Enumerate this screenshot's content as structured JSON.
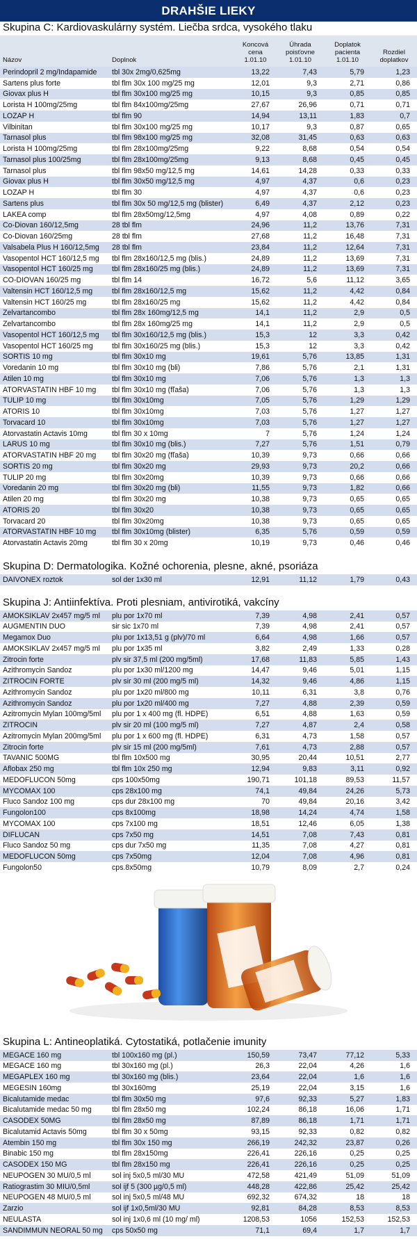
{
  "header": {
    "title": "DRAHŠIE LIEKY"
  },
  "columns": [
    [
      "Názov"
    ],
    [
      "Doplnok"
    ],
    [
      "Koncová",
      "cena",
      "1.01.10"
    ],
    [
      "Úhrada",
      "poisťovne",
      "1.01.10"
    ],
    [
      "Doplatok",
      "pacienta",
      "1.01.10"
    ],
    [
      "Rozdiel",
      "doplatkov"
    ]
  ],
  "sections": [
    {
      "title": "Skupina C: Kardiovaskulárny systém. Liečba srdca, vysokého tlaku",
      "rows": [
        [
          "Perindopril 2 mg/Indapamide",
          "tbl 30x 2mg/0,625mg",
          "13,22",
          "7,43",
          "5,79",
          "1,23"
        ],
        [
          "Sartens plus forte",
          "tbl flm 30x 100 mg/25 mg",
          "12,01",
          "9,3",
          "2,71",
          "0,86"
        ],
        [
          "Giovax plus H",
          "tbl flm 30x100 mg/25 mg",
          "10,15",
          "9,3",
          "0,85",
          "0,85"
        ],
        [
          "Lorista H 100mg/25mg",
          "tbl flm 84x100mg/25mg",
          "27,67",
          "26,96",
          "0,71",
          "0,71"
        ],
        [
          "LOZAP H",
          "tbl flm 90",
          "14,94",
          "13,11",
          "1,83",
          "0,7"
        ],
        [
          "Vilbinitan",
          "tbl flm 30x100 mg/25 mg",
          "10,17",
          "9,3",
          "0,87",
          "0,65"
        ],
        [
          "Tarnasol plus",
          "tbl flm 98x100 mg/25 mg",
          "32,08",
          "31,45",
          "0,63",
          "0,63"
        ],
        [
          "Lorista H 100mg/25mg",
          "tbl flm 28x100mg/25mg",
          "9,22",
          "8,68",
          "0,54",
          "0,54"
        ],
        [
          "Tarnasol plus 100/25mg",
          "tbl flm 28x100mg/25mg",
          "9,13",
          "8,68",
          "0,45",
          "0,45"
        ],
        [
          "Tarnasol plus",
          "tbl flm 98x50 mg/12,5 mg",
          "14,61",
          "14,28",
          "0,33",
          "0,33"
        ],
        [
          "Giovax plus H",
          "tbl flm 30x50 mg/12,5 mg",
          "4,97",
          "4,37",
          "0,6",
          "0,23"
        ],
        [
          "LOZAP H",
          "tbl flm 30",
          "4,97",
          "4,37",
          "0,6",
          "0,23"
        ],
        [
          "Sartens plus",
          "tbl flm 30x 50 mg/12,5 mg (blister)",
          "6,49",
          "4,37",
          "2,12",
          "0,23"
        ],
        [
          "LAKEA comp",
          "tbl flm 28x50mg/12,5mg",
          "4,97",
          "4,08",
          "0,89",
          "0,22"
        ],
        [
          "Co-Diovan 160/12,5mg",
          "28 tbl flm",
          "24,96",
          "11,2",
          "13,76",
          "7,31"
        ],
        [
          "Co-Diovan 160/25mg",
          "28 tbl flm",
          "27,68",
          "11,2",
          "16,48",
          "7,31"
        ],
        [
          "Valsabela Plus H 160/12,5mg",
          "28 tbl flm",
          "23,84",
          "11,2",
          "12,64",
          "7,31"
        ],
        [
          "Vasopentol HCT 160/12,5 mg",
          "tbl flm 28x160/12,5 mg (blis.)",
          "24,89",
          "11,2",
          "13,69",
          "7,31"
        ],
        [
          "Vasopentol HCT 160/25 mg",
          "tbl flm 28x160/25 mg (blis.)",
          "24,89",
          "11,2",
          "13,69",
          "7,31"
        ],
        [
          "CO-DIOVAN 160/25 mg",
          "tbl flm 14",
          "16,72",
          "5,6",
          "11,12",
          "3,65"
        ],
        [
          "Valtensin HCT 160/12,5 mg",
          "tbl flm 28x160/12,5 mg",
          "15,62",
          "11,2",
          "4,42",
          "0,84"
        ],
        [
          "Valtensin HCT 160/25 mg",
          "tbl flm 28x160/25 mg",
          "15,62",
          "11,2",
          "4,42",
          "0,84"
        ],
        [
          "Zelvartancombo",
          "tbl flm 28x 160mg/12,5 mg",
          "14,1",
          "11,2",
          "2,9",
          "0,5"
        ],
        [
          "Zelvartancombo",
          "tbl flm 28x 160mg/25 mg",
          "14,1",
          "11,2",
          "2,9",
          "0,5"
        ],
        [
          "Vasopentol HCT 160/12,5 mg",
          "tbl flm 30x160/12,5 mg (blis.)",
          "15,3",
          "12",
          "3,3",
          "0,42"
        ],
        [
          "Vasopentol HCT 160/25 mg",
          "tbl flm 30x160/25 mg (blis.)",
          "15,3",
          "12",
          "3,3",
          "0,42"
        ],
        [
          "SORTIS 10 mg",
          "tbl flm 30x10 mg",
          "19,61",
          "5,76",
          "13,85",
          "1,31"
        ],
        [
          "Voredanin 10 mg",
          "tbl flm 30x10 mg (bli)",
          "7,86",
          "5,76",
          "2,1",
          "1,31"
        ],
        [
          "Atilen 10 mg",
          "tbl flm 30x10 mg",
          "7,06",
          "5,76",
          "1,3",
          "1,3"
        ],
        [
          "ATORVASTATIN HBF 10 mg",
          "tbl flm 30x10 mg (fľaša)",
          "7,06",
          "5,76",
          "1,3",
          "1,3"
        ],
        [
          "TULIP 10 mg",
          "tbl flm 30x10mg",
          "7,05",
          "5,76",
          "1,29",
          "1,29"
        ],
        [
          "ATORIS 10",
          "tbl flm 30x10mg",
          "7,03",
          "5,76",
          "1,27",
          "1,27"
        ],
        [
          "Torvacard 10",
          "tbl flm 30x10mg",
          "7,03",
          "5,76",
          "1,27",
          "1,27"
        ],
        [
          "Atorvastatin Actavis 10mg",
          "tbl flm 30 x 10mg",
          "7",
          "5,76",
          "1,24",
          "1,24"
        ],
        [
          "LARUS 10 mg",
          "tbl flm 30x10 mg (blis.)",
          "7,27",
          "5,76",
          "1,51",
          "0,79"
        ],
        [
          "ATORVASTATIN HBF 20 mg",
          "tbl flm 30x20 mg (fľaša)",
          "10,39",
          "9,73",
          "0,66",
          "0,66"
        ],
        [
          "SORTIS 20 mg",
          "tbl flm 30x20 mg",
          "29,93",
          "9,73",
          "20,2",
          "0,66"
        ],
        [
          "TULIP 20 mg",
          "tbl flm 30x20mg",
          "10,39",
          "9,73",
          "0,66",
          "0,66"
        ],
        [
          "Voredanin 20 mg",
          "tbl flm 30x20 mg (bli)",
          "11,55",
          "9,73",
          "1,82",
          "0,66"
        ],
        [
          "Atilen 20 mg",
          "tbl flm 30x20 mg",
          "10,38",
          "9,73",
          "0,65",
          "0,65"
        ],
        [
          "ATORIS 20",
          "tbl flm 30x20",
          "10,38",
          "9,73",
          "0,65",
          "0,65"
        ],
        [
          "Torvacard 20",
          "tbl flm 30x20mg",
          "10,38",
          "9,73",
          "0,65",
          "0,65"
        ],
        [
          "ATORVASTATIN HBF 10 mg",
          "tbl flm 30x10mg (blister)",
          "6,35",
          "5,76",
          "0,59",
          "0,59"
        ],
        [
          "Atorvastatin Actavis 20mg",
          "tbl flm 30 x 20mg",
          "10,19",
          "9,73",
          "0,46",
          "0,46"
        ]
      ]
    },
    {
      "title": "Skupina D: Dermatologika. Kožné ochorenia, plesne, akné, psoriáza",
      "rows": [
        [
          "DAIVONEX roztok",
          "sol der 1x30 ml",
          "12,91",
          "11,12",
          "1,79",
          "0,43"
        ]
      ]
    },
    {
      "title": "Skupina J: Antiinfektíva. Proti plesniam, antivirotiká, vakcíny",
      "rows": [
        [
          "AMOKSIKLAV 2x457 mg/5 ml",
          "plu por 1x70 ml",
          "7,39",
          "4,98",
          "2,41",
          "0,57"
        ],
        [
          "AUGMENTIN DUO",
          "sir sic 1x70 ml",
          "7,39",
          "4,98",
          "2,41",
          "0,57"
        ],
        [
          "Megamox Duo",
          "plu por 1x13,51 g (plv)/70 ml",
          "6,64",
          "4,98",
          "1,66",
          "0,57"
        ],
        [
          "AMOKSIKLAV 2x457 mg/5 ml",
          "plu por 1x35 ml",
          "3,82",
          "2,49",
          "1,33",
          "0,28"
        ],
        [
          "Zitrocin forte",
          "plv sir 37,5 ml (200 mg/5ml)",
          "17,68",
          "11,83",
          "5,85",
          "1,43"
        ],
        [
          "Azithromycin Sandoz",
          "plu por 1x30 ml/1200 mg",
          "14,47",
          "9,46",
          "5,01",
          "1,15"
        ],
        [
          "ZITROCIN FORTE",
          "plv sir 30 ml (200 mg/5 ml)",
          "14,32",
          "9,46",
          "4,86",
          "1,15"
        ],
        [
          "Azithromycin Sandoz",
          "plu por 1x20 ml/800 mg",
          "10,11",
          "6,31",
          "3,8",
          "0,76"
        ],
        [
          "Azithromycin Sandoz",
          "plu por 1x20 ml/400 mg",
          "7,27",
          "4,88",
          "2,39",
          "0,59"
        ],
        [
          "Azitromycin Mylan 100mg/5ml",
          "plu por 1 x 400 mg (fl. HDPE)",
          "6,51",
          "4,88",
          "1,63",
          "0,59"
        ],
        [
          "ZITROCIN",
          "plv sir 20 ml (100 mg/5 ml)",
          "7,27",
          "4,87",
          "2,4",
          "0,58"
        ],
        [
          "Azitromycin Mylan 200mg/5ml",
          "plu por 1 x 600 mg (fl. HDPE)",
          "6,31",
          "4,73",
          "1,58",
          "0,57"
        ],
        [
          "Zitrocin forte",
          "plv sir 15 ml (200 mg/5ml)",
          "7,61",
          "4,73",
          "2,88",
          "0,57"
        ],
        [
          "TAVANIC 500MG",
          "tbl flm 10x500 mg",
          "30,95",
          "20,44",
          "10,51",
          "2,77"
        ],
        [
          "Aflobax 250 mg",
          "tbl flm 10x 250 mg",
          "12,94",
          "9,83",
          "3,11",
          "0,92"
        ],
        [
          "MEDOFLUCON 50mg",
          "cps 100x50mg",
          "190,71",
          "101,18",
          "89,53",
          "11,57"
        ],
        [
          "MYCOMAX 100",
          "cps 28x100 mg",
          "74,1",
          "49,84",
          "24,26",
          "5,73"
        ],
        [
          "Fluco Sandoz 100 mg",
          "cps dur 28x100 mg",
          "70",
          "49,84",
          "20,16",
          "3,42"
        ],
        [
          "Fungolon100",
          "cps 8x100mg",
          "18,98",
          "14,24",
          "4,74",
          "1,58"
        ],
        [
          "MYCOMAX 100",
          "cps 7x100 mg",
          "18,51",
          "12,46",
          "6,05",
          "1,38"
        ],
        [
          "DIFLUCAN",
          "cps 7x50 mg",
          "14,51",
          "7,08",
          "7,43",
          "0,81"
        ],
        [
          "Fluco Sandoz 50 mg",
          "cps dur 7x50 mg",
          "11,35",
          "7,08",
          "4,27",
          "0,81"
        ],
        [
          "MEDOFLUCON 50mg",
          "cps 7x50mg",
          "12,04",
          "7,08",
          "4,96",
          "0,81"
        ],
        [
          "Fungolon50",
          "cps.8x50mg",
          "10,79",
          "8,09",
          "2,7",
          "0,24"
        ]
      ]
    },
    {
      "title": "Skupina L: Antineoplatiká. Cytostatiká, potlačenie imunity",
      "rows": [
        [
          "MEGACE 160 mg",
          "tbl 100x160 mg (pl.)",
          "150,59",
          "73,47",
          "77,12",
          "5,33"
        ],
        [
          "MEGACE 160 mg",
          "tbl 30x160 mg (pl.)",
          "26,3",
          "22,04",
          "4,26",
          "1,6"
        ],
        [
          "MEGAPLEX 160 mg",
          "tbl 30x160 mg (blis.)",
          "23,64",
          "22,04",
          "1,6",
          "1,6"
        ],
        [
          "MEGESIN 160mg",
          "tbl 30x160mg",
          "25,19",
          "22,04",
          "3,15",
          "1,6"
        ],
        [
          "Bicalutamide medac",
          "tbl flm 30x50 mg",
          "97,6",
          "92,33",
          "5,27",
          "1,83"
        ],
        [
          "Bicalutamide medac 50 mg",
          "tbl flm 28x50 mg",
          "102,24",
          "86,18",
          "16,06",
          "1,71"
        ],
        [
          "CASODEX 50MG",
          "tbl flm 28x50 mg",
          "87,89",
          "86,18",
          "1,71",
          "1,71"
        ],
        [
          "Bicalutamid Actavis 50mg",
          "tbl flm 30 x 50mg",
          "93,15",
          "92,33",
          "0,82",
          "0,82"
        ],
        [
          "Atembin 150 mg",
          "tbl flm 30x 150 mg",
          "266,19",
          "242,32",
          "23,87",
          "0,26"
        ],
        [
          "Binabic 150 mg",
          "tbl flm 28x150mg",
          "226,41",
          "226,16",
          "0,25",
          "0,25"
        ],
        [
          "CASODEX 150 MG",
          "tbl flm 28x150 mg",
          "226,41",
          "226,16",
          "0,25",
          "0,25"
        ],
        [
          "NEUPOGEN 30 MU/0,5 ml",
          "sol inj 5x0,5 ml/30 MU",
          "472,58",
          "421,49",
          "51,09",
          "51,09"
        ],
        [
          "Ratiograstim 30 MIU/0,5ml",
          "sol ijf 5 (300 µg/0,5 ml)",
          "448,28",
          "422,86",
          "25,42",
          "25,42"
        ],
        [
          "NEUPOGEN 48 MU/0,5 ml",
          "sol inj 5x0,5 ml/48 MU",
          "692,32",
          "674,32",
          "18",
          "18"
        ],
        [
          "Zarzio",
          "sol ijf 1x0,5ml/30 MU",
          "92,81",
          "84,28",
          "8,53",
          "8,53"
        ],
        [
          "NEULASTA",
          "sol inj 1x0,6 ml (10 mg/ ml)",
          "1208,53",
          "1056",
          "152,53",
          "152,53"
        ],
        [
          "SANDIMMUN NEORAL 50 mg",
          "cps 50x50 mg",
          "71,1",
          "69,4",
          "1,7",
          "1,7"
        ]
      ]
    }
  ]
}
